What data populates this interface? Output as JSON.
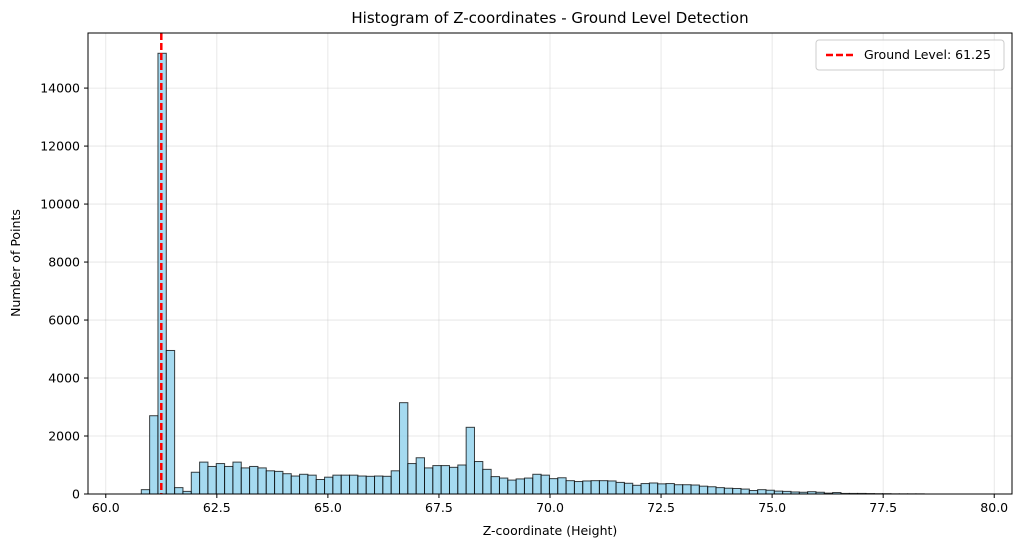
{
  "chart_data": {
    "type": "bar",
    "title": "Histogram of Z-coordinates - Ground Level Detection",
    "xlabel": "Z-coordinate (Height)",
    "ylabel": "Number of Points",
    "xlim": [
      59.6,
      80.4
    ],
    "ylim": [
      0,
      15900
    ],
    "xticks": [
      60.0,
      62.5,
      65.0,
      67.5,
      70.0,
      72.5,
      75.0,
      77.5,
      80.0
    ],
    "xtick_labels": [
      "60.0",
      "62.5",
      "65.0",
      "67.5",
      "70.0",
      "72.5",
      "75.0",
      "77.5",
      "80.0"
    ],
    "yticks": [
      0,
      2000,
      4000,
      6000,
      8000,
      10000,
      12000,
      14000
    ],
    "ytick_labels": [
      "0",
      "2000",
      "4000",
      "6000",
      "8000",
      "10000",
      "12000",
      "14000"
    ],
    "grid": true,
    "bar_color": "#87ceeb",
    "bar_edge_color": "#000000",
    "bin_start": 60.8,
    "bin_width": 0.1875,
    "counts": [
      150,
      2700,
      15200,
      4950,
      220,
      90,
      750,
      1100,
      950,
      1050,
      950,
      1100,
      900,
      950,
      900,
      800,
      780,
      700,
      620,
      680,
      650,
      500,
      580,
      650,
      650,
      650,
      620,
      610,
      620,
      610,
      800,
      3150,
      1050,
      1250,
      900,
      980,
      980,
      920,
      1000,
      2300,
      1120,
      850,
      600,
      550,
      480,
      520,
      550,
      680,
      650,
      530,
      560,
      460,
      430,
      450,
      460,
      460,
      450,
      400,
      370,
      300,
      360,
      380,
      350,
      360,
      320,
      320,
      310,
      270,
      250,
      220,
      200,
      190,
      170,
      120,
      150,
      130,
      100,
      90,
      70,
      60,
      80,
      60,
      30,
      50,
      20,
      20,
      20,
      15,
      10,
      10,
      5,
      5,
      5,
      5
    ],
    "ground_level": {
      "value": 61.25,
      "label": "Ground Level: 61.25",
      "color": "#ff0000"
    },
    "legend_position": "top-right"
  }
}
